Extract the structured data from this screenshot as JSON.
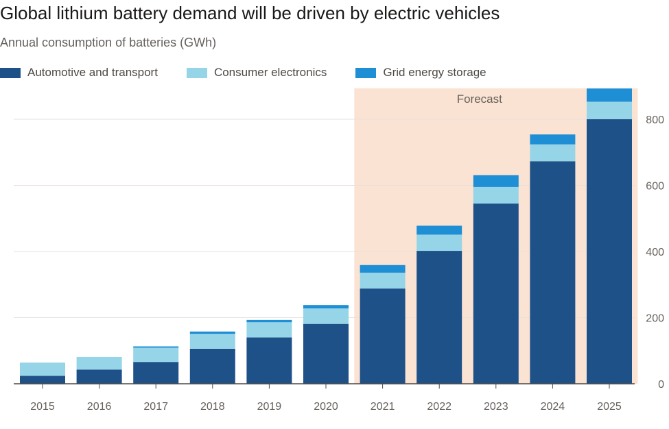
{
  "title": "Global lithium battery demand will be driven by electric vehicles",
  "subtitle": "Annual consumption of batteries (GWh)",
  "chart_data": {
    "type": "bar",
    "stacked": true,
    "categories": [
      "2015",
      "2016",
      "2017",
      "2018",
      "2019",
      "2020",
      "2021",
      "2022",
      "2023",
      "2024",
      "2025"
    ],
    "series": [
      {
        "name": "Automotive and transport",
        "color": "#1f5189",
        "values": [
          24,
          43,
          66,
          106,
          140,
          181,
          288,
          402,
          545,
          673,
          800
        ]
      },
      {
        "name": "Consumer electronics",
        "color": "#96d4e8",
        "values": [
          40,
          38,
          43,
          45,
          46,
          47,
          48,
          49,
          50,
          51,
          53
        ]
      },
      {
        "name": "Grid energy storage",
        "color": "#1e8fd5",
        "values": [
          0,
          0,
          4,
          7,
          7,
          10,
          23,
          27,
          36,
          30,
          40
        ]
      }
    ],
    "ylim": [
      0,
      900
    ],
    "yticks": [
      0,
      200,
      400,
      600,
      800
    ],
    "forecast": {
      "label": "Forecast",
      "start": "2021",
      "end": "2025"
    },
    "xlabel": "",
    "ylabel": ""
  }
}
